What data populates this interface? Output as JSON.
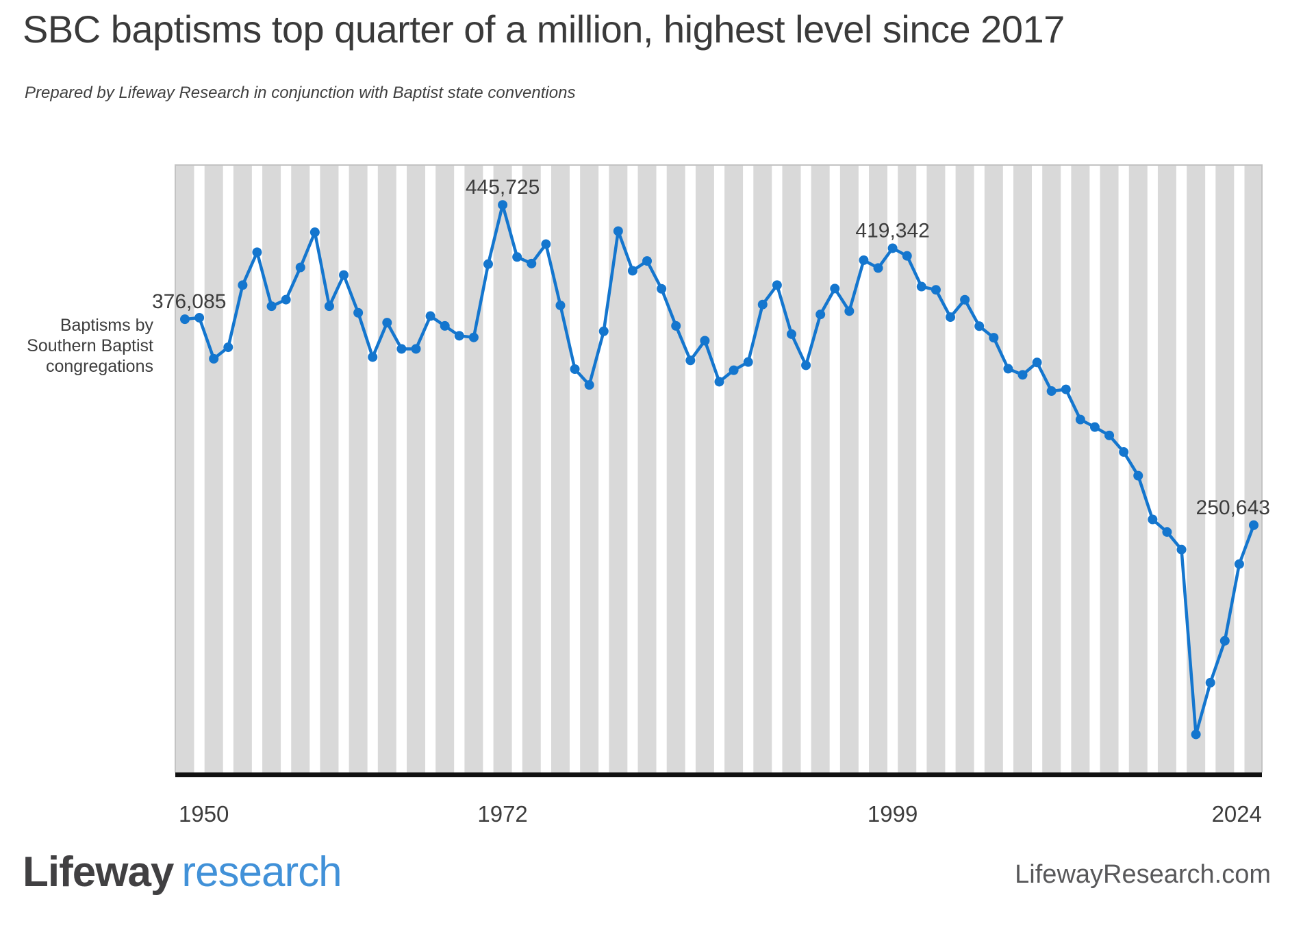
{
  "header": {
    "title": "SBC baptisms top quarter of a million, highest level since 2017",
    "subtitle": "Prepared by Lifeway Research in conjunction with Baptist state conventions"
  },
  "chart_data": {
    "type": "line",
    "title": "SBC baptisms top quarter of a million, highest level since 2017",
    "ylabel_lines": [
      "Baptisms by",
      "Southern Baptist",
      "congregations"
    ],
    "xlabel": "",
    "x_ticks": [
      1950,
      1972,
      1999,
      2024
    ],
    "y_min": 100000,
    "y_max": 470000,
    "grid": "alternating vertical year stripes, no gridlines",
    "legend": "none",
    "years": [
      1950,
      1951,
      1952,
      1953,
      1954,
      1955,
      1956,
      1957,
      1958,
      1959,
      1960,
      1961,
      1962,
      1963,
      1964,
      1965,
      1966,
      1967,
      1968,
      1969,
      1970,
      1971,
      1972,
      1973,
      1974,
      1975,
      1976,
      1977,
      1978,
      1979,
      1980,
      1981,
      1982,
      1983,
      1984,
      1985,
      1986,
      1987,
      1988,
      1989,
      1990,
      1991,
      1992,
      1993,
      1994,
      1995,
      1996,
      1997,
      1998,
      1999,
      2000,
      2001,
      2002,
      2003,
      2004,
      2005,
      2006,
      2007,
      2008,
      2009,
      2010,
      2011,
      2012,
      2013,
      2014,
      2015,
      2016,
      2017,
      2018,
      2019,
      2020,
      2021,
      2022,
      2023,
      2024
    ],
    "values": [
      376085,
      377000,
      352000,
      359000,
      396857,
      416867,
      384000,
      388000,
      407642,
      429063,
      384000,
      403000,
      380000,
      353000,
      374000,
      358000,
      358000,
      378000,
      372000,
      366000,
      365000,
      409659,
      445725,
      413990,
      410000,
      421809,
      384496,
      345690,
      336050,
      368738,
      429742,
      405608,
      411554,
      394606,
      372028,
      351000,
      363000,
      338000,
      345000,
      350000,
      385031,
      396868,
      367000,
      348000,
      379000,
      394748,
      381000,
      412027,
      407264,
      419342,
      414657,
      395940,
      394000,
      377357,
      387947,
      371850,
      364826,
      345941,
      342198,
      349737,
      332321,
      333341,
      314956,
      310368,
      305301,
      295212,
      280773,
      254122,
      246442,
      235748,
      123160,
      154701,
      180177,
      226919,
      250643
    ],
    "annotations": [
      {
        "year": 1950,
        "value": 376085,
        "label": "376,085"
      },
      {
        "year": 1972,
        "value": 445725,
        "label": "445,725"
      },
      {
        "year": 1999,
        "value": 419342,
        "label": "419,342"
      },
      {
        "year": 2024,
        "value": 250643,
        "label": "250,643"
      }
    ],
    "colors": {
      "line": "#1476ce",
      "stripe": "#d9d9d9",
      "plot_background": "#ffffff",
      "axis_line": "#111111",
      "label_text": "#3d3d3d",
      "plot_border": "#c3c3c3"
    }
  },
  "footer": {
    "logo_primary": "Lifeway",
    "logo_secondary": "research",
    "website": "LifewayResearch.com"
  }
}
